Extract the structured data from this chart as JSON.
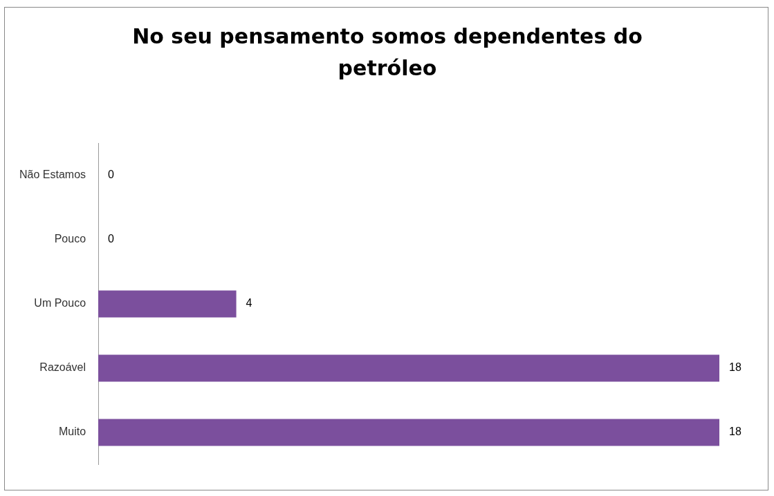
{
  "chart_data": {
    "type": "bar",
    "orientation": "horizontal",
    "title": "No seu pensamento somos dependentes do petróleo",
    "categories": [
      "Não Estamos",
      "Pouco",
      "Um Pouco",
      "Razoável",
      "Muito"
    ],
    "values": [
      0,
      0,
      4,
      18,
      18
    ],
    "color": "#7b4f9d",
    "data_labels": true
  }
}
